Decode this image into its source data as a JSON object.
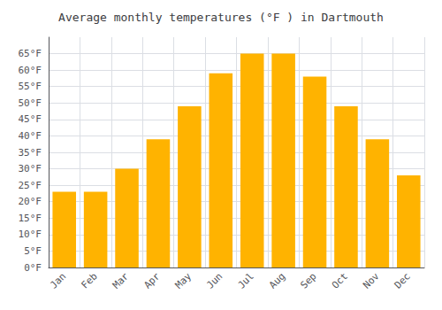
{
  "chart_data": {
    "type": "bar",
    "title": "Average monthly temperatures (°F ) in Dartmouth",
    "categories": [
      "Jan",
      "Feb",
      "Mar",
      "Apr",
      "May",
      "Jun",
      "Jul",
      "Aug",
      "Sep",
      "Oct",
      "Nov",
      "Dec"
    ],
    "values": [
      23,
      23,
      30,
      39,
      49,
      59,
      65,
      65,
      58,
      49,
      39,
      28
    ],
    "color": "#FFB300",
    "ylim": [
      0,
      70
    ],
    "yticks": [
      {
        "value": 0,
        "label": "0°F"
      },
      {
        "value": 5,
        "label": "5°F"
      },
      {
        "value": 10,
        "label": "10°F"
      },
      {
        "value": 15,
        "label": "15°F"
      },
      {
        "value": 20,
        "label": "20°F"
      },
      {
        "value": 25,
        "label": "25°F"
      },
      {
        "value": 30,
        "label": "30°F"
      },
      {
        "value": 35,
        "label": "35°F"
      },
      {
        "value": 40,
        "label": "40°F"
      },
      {
        "value": 45,
        "label": "45°F"
      },
      {
        "value": 50,
        "label": "50°F"
      },
      {
        "value": 55,
        "label": "55°F"
      },
      {
        "value": 60,
        "label": "60°F"
      },
      {
        "value": 65,
        "label": "65°F"
      }
    ],
    "grid": true
  }
}
